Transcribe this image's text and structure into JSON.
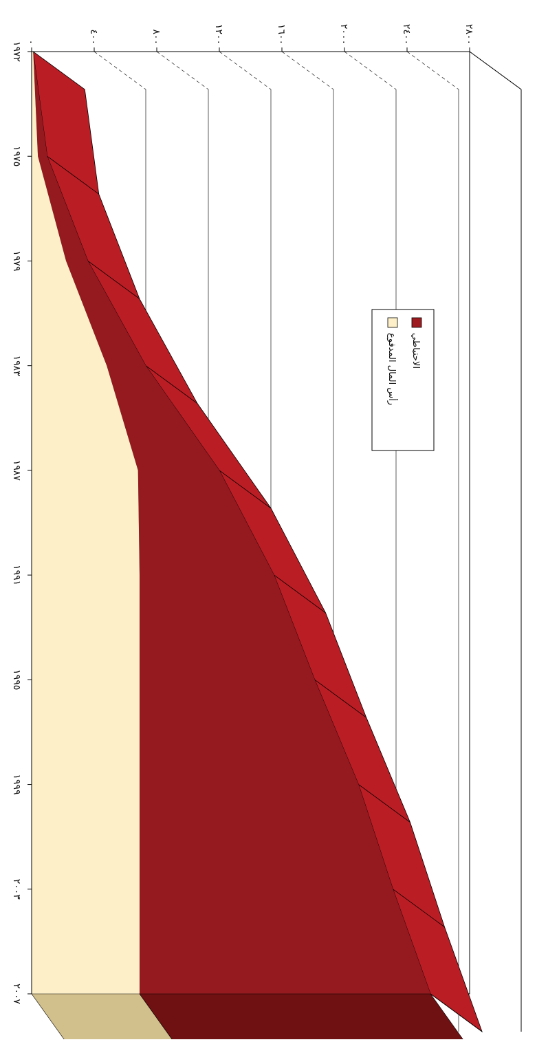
{
  "chart_data": {
    "type": "area",
    "stacked": true,
    "three_d": true,
    "orientation": "rotated-90",
    "x": [
      "١٩٧٢",
      "١٩٧٥",
      "١٩٧٩",
      "١٩٨٣",
      "١٩٨٧",
      "١٩٩١",
      "١٩٩٥",
      "١٩٩٩",
      "٢٠٠٣",
      "٢٠٠٧"
    ],
    "x_values": [
      1972,
      1975,
      1979,
      1983,
      1987,
      1991,
      1995,
      1999,
      2003,
      2007
    ],
    "y_ticks": [
      "٠",
      "٤٠٠",
      "٨٠٠",
      "١٢٠٠",
      "١٦٠٠",
      "٢٠٠٠",
      "٢٤٠٠",
      "٢٨٠٠"
    ],
    "ylim": [
      0,
      2800
    ],
    "gridlines": true,
    "legend_position": "center-right",
    "series": [
      {
        "name": "رأس المال المدفوع",
        "color": "#fdf0c8",
        "values": [
          10,
          40,
          220,
          480,
          680,
          690,
          690,
          690,
          690,
          690
        ]
      },
      {
        "name": "الاحتياطي",
        "color": "#9e1b20",
        "values": [
          0,
          60,
          140,
          250,
          520,
          860,
          1120,
          1400,
          1620,
          1860
        ]
      }
    ]
  }
}
